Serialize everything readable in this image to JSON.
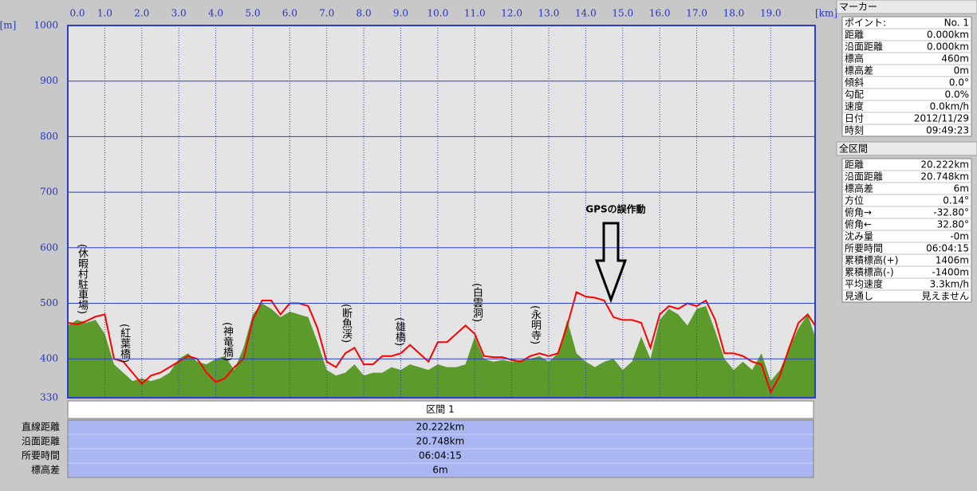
{
  "chart_data": {
    "type": "line",
    "x": [
      0,
      0.25,
      0.5,
      0.75,
      1,
      1.25,
      1.5,
      1.75,
      2,
      2.25,
      2.5,
      2.75,
      3,
      3.25,
      3.5,
      3.75,
      4,
      4.25,
      4.5,
      4.75,
      5,
      5.25,
      5.5,
      5.75,
      6,
      6.25,
      6.5,
      6.75,
      7,
      7.25,
      7.5,
      7.75,
      8,
      8.25,
      8.5,
      8.75,
      9,
      9.25,
      9.5,
      9.75,
      10,
      10.25,
      10.5,
      10.75,
      11,
      11.25,
      11.5,
      11.75,
      12,
      12.25,
      12.5,
      12.75,
      13,
      13.25,
      13.5,
      13.75,
      14,
      14.25,
      14.5,
      14.75,
      15,
      15.25,
      15.5,
      15.75,
      16,
      16.25,
      16.5,
      16.75,
      17,
      17.25,
      17.5,
      17.75,
      18,
      18.25,
      18.5,
      18.75,
      19,
      19.25,
      19.5,
      19.75,
      20,
      20.2
    ],
    "series": [
      {
        "style": "area",
        "color": "#5b9a2b",
        "values": [
          460,
          470,
          465,
          470,
          445,
          390,
          375,
          360,
          365,
          360,
          365,
          375,
          400,
          410,
          395,
          390,
          400,
          405,
          380,
          420,
          480,
          500,
          490,
          475,
          485,
          480,
          475,
          430,
          380,
          370,
          375,
          390,
          370,
          375,
          375,
          385,
          380,
          390,
          385,
          380,
          390,
          385,
          385,
          390,
          440,
          400,
          395,
          398,
          395,
          398,
          400,
          405,
          395,
          410,
          470,
          410,
          395,
          385,
          395,
          400,
          380,
          395,
          440,
          400,
          470,
          490,
          480,
          460,
          490,
          495,
          450,
          400,
          380,
          395,
          380,
          410,
          360,
          380,
          420,
          455,
          480,
          440
        ]
      },
      {
        "style": "line",
        "color": "#ff0000",
        "values": [
          465,
          462,
          468,
          476,
          480,
          400,
          395,
          375,
          355,
          370,
          375,
          385,
          395,
          405,
          400,
          375,
          358,
          365,
          385,
          400,
          470,
          505,
          505,
          480,
          500,
          500,
          495,
          455,
          395,
          385,
          410,
          420,
          390,
          390,
          405,
          405,
          410,
          425,
          410,
          395,
          430,
          430,
          445,
          460,
          445,
          405,
          403,
          403,
          398,
          395,
          405,
          410,
          405,
          410,
          460,
          520,
          512,
          510,
          505,
          475,
          470,
          470,
          465,
          420,
          480,
          495,
          490,
          500,
          495,
          505,
          470,
          410,
          410,
          405,
          395,
          390,
          340,
          370,
          420,
          465,
          480,
          460
        ]
      }
    ],
    "xlim": [
      0,
      20.2
    ],
    "xticks": [
      {
        "value": 0,
        "label": "0.0"
      },
      {
        "value": 1,
        "label": "1.0"
      },
      {
        "value": 2,
        "label": "2.0"
      },
      {
        "value": 3,
        "label": "3.0"
      },
      {
        "value": 4,
        "label": "4.0"
      },
      {
        "value": 5,
        "label": "5.0"
      },
      {
        "value": 6,
        "label": "6.0"
      },
      {
        "value": 7,
        "label": "7.0"
      },
      {
        "value": 8,
        "label": "8.0"
      },
      {
        "value": 9,
        "label": "9.0"
      },
      {
        "value": 10,
        "label": "10.0"
      },
      {
        "value": 11,
        "label": "11.0"
      },
      {
        "value": 12,
        "label": "12.0"
      },
      {
        "value": 13,
        "label": "13.0"
      },
      {
        "value": 14,
        "label": "14.0"
      },
      {
        "value": 15,
        "label": "15.0"
      },
      {
        "value": 16,
        "label": "16.0"
      },
      {
        "value": 17,
        "label": "17.0"
      },
      {
        "value": 18,
        "label": "18.0"
      },
      {
        "value": 19,
        "label": "19.0"
      }
    ],
    "x_unit": "[km]",
    "y_unit": "[m]",
    "ylim": [
      330,
      1000
    ],
    "yticks": [
      330,
      400,
      500,
      600,
      700,
      800,
      900,
      1000
    ],
    "grid": true,
    "annotations": [
      "(休暇村駐車場)",
      "(紅葉橋)",
      "(神竜橋)",
      "(断魚渓)",
      "(雄橋)",
      "(白雲洞)",
      "(永明寺)"
    ],
    "callout": "GPSの誤作動"
  },
  "marker_panel": {
    "title": "マーカー",
    "rows": [
      [
        "ポイント:",
        "No. 1"
      ],
      [
        "距離",
        "0.000km"
      ],
      [
        "沿面距離",
        "0.000km"
      ],
      [
        "標高",
        "460m"
      ],
      [
        "標高差",
        "0m"
      ],
      [
        "傾斜",
        "0.0°"
      ],
      [
        "勾配",
        "0.0%"
      ],
      [
        "速度",
        "0.0km/h"
      ],
      [
        "日付",
        "2012/11/29"
      ],
      [
        "時刻",
        "09:49:23"
      ]
    ]
  },
  "total_panel": {
    "title": "全区間",
    "rows": [
      [
        "距離",
        "20.222km"
      ],
      [
        "沿面距離",
        "20.748km"
      ],
      [
        "標高差",
        "6m"
      ],
      [
        "方位",
        "0.14°"
      ],
      [
        "俯角→",
        "-32.80°"
      ],
      [
        "俯角←",
        "32.80°"
      ],
      [
        "沈み量",
        "-0m"
      ],
      [
        "所要時間",
        "06:04:15"
      ],
      [
        "累積標高(+)",
        "1406m"
      ],
      [
        "累積標高(-)",
        "-1400m"
      ],
      [
        "平均速度",
        "3.3km/h"
      ],
      [
        "見通し",
        "見えません"
      ]
    ]
  },
  "segment_table": {
    "title": "区間 1",
    "rows": [
      [
        "直線距離",
        "20.222km"
      ],
      [
        "沿面距離",
        "20.748km"
      ],
      [
        "所要時間",
        "06:04:15"
      ],
      [
        "標高差",
        "6m"
      ]
    ]
  }
}
